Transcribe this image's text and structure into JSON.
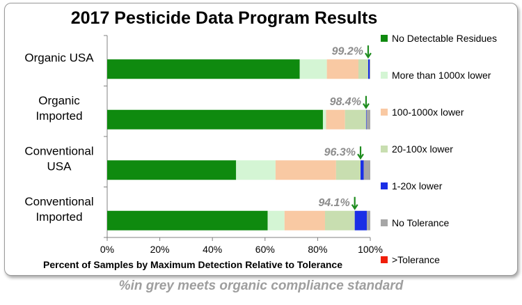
{
  "chart_data": {
    "type": "bar",
    "orientation": "horizontal",
    "stacked": true,
    "title": "2017 Pesticide Data Program Results",
    "xlabel": "Percent of Samples by Maximum Detection Relative to Tolerance",
    "ylabel": "",
    "xlim": [
      0,
      100
    ],
    "x_ticks": [
      "0%",
      "20%",
      "40%",
      "60%",
      "80%",
      "100%"
    ],
    "grid": false,
    "legend_position": "right",
    "categories": [
      "Organic USA",
      "Organic Imported",
      "Conventional USA",
      "Conventional Imported"
    ],
    "series": [
      {
        "name": "No Detectable Residues",
        "color": "#0f8a0f",
        "values": [
          73.2,
          82.0,
          49.0,
          61.0
        ]
      },
      {
        "name": "More than 1000x lower",
        "color": "#d4f5d4",
        "values": [
          10.3,
          1.2,
          15.0,
          6.4
        ]
      },
      {
        "name": "100-1000x lower",
        "color": "#f9c9a3",
        "values": [
          12.0,
          7.2,
          23.0,
          15.4
        ]
      },
      {
        "name": "20-100x lower",
        "color": "#c8deb0",
        "values": [
          3.7,
          8.0,
          9.3,
          11.3
        ]
      },
      {
        "name": "1-20x lower",
        "color": "#1a2ee6",
        "values": [
          0.6,
          0.2,
          1.2,
          4.6
        ]
      },
      {
        "name": "No Tolerance",
        "color": "#a6a6a6",
        "values": [
          0.2,
          1.4,
          2.5,
          1.3
        ]
      },
      {
        "name": ">Tolerance",
        "color": "#f01e0a",
        "values": [
          0.0,
          0.0,
          0.0,
          0.0
        ]
      }
    ],
    "annotations": [
      {
        "label": "99.2%",
        "x": 99.2
      },
      {
        "label": "98.4%",
        "x": 98.4
      },
      {
        "label": "96.3%",
        "x": 96.3
      },
      {
        "label": "94.1%",
        "x": 94.1
      }
    ],
    "colors": {
      "annotation_text": "#8c8c8c",
      "arrow": "#1e8c1e"
    }
  },
  "caption": "%in grey meets organic compliance standard"
}
